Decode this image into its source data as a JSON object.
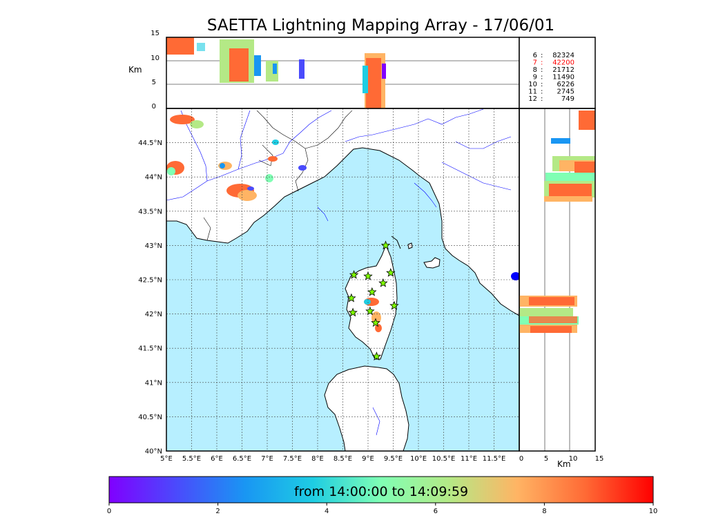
{
  "title": "SAETTA Lightning Mapping Array - 17/06/01",
  "altitude_axis": {
    "unit_label": "Km",
    "ticks": [
      "0",
      "5",
      "10",
      "15"
    ]
  },
  "lon_ticks": [
    "5°E",
    "5.5°E",
    "6°E",
    "6.5°E",
    "7°E",
    "7.5°E",
    "8°E",
    "8.5°E",
    "9°E",
    "9.5°E",
    "10°E",
    "10.5°E",
    "11°E",
    "11.5°E"
  ],
  "lat_ticks": [
    "40°N",
    "40.5°N",
    "41°N",
    "41.5°N",
    "42°N",
    "42.5°N",
    "43°N",
    "43.5°N",
    "44°N",
    "44.5°N"
  ],
  "station_counts": [
    {
      "station": "6",
      "count": "82324",
      "color": "#000000"
    },
    {
      "station": "7",
      "count": "42200",
      "color": "#ff0000"
    },
    {
      "station": "8",
      "count": "21712",
      "color": "#000000"
    },
    {
      "station": "9",
      "count": "11490",
      "color": "#000000"
    },
    {
      "station": "10",
      "count": "6226",
      "color": "#000000"
    },
    {
      "station": "11",
      "count": "2745",
      "color": "#000000"
    },
    {
      "station": "12",
      "count": "749",
      "color": "#000000"
    }
  ],
  "colorbar": {
    "caption": "from 14:00:00 to 14:09:59",
    "ticks": [
      "0",
      "2",
      "4",
      "6",
      "8",
      "10"
    ],
    "colormap": "rainbow",
    "vmin": 0,
    "vmax": 10
  },
  "map": {
    "sea_color": "#b7efff",
    "land_color": "#ffffff",
    "river_color": "#0000ff"
  },
  "sensor_stations": [
    {
      "lon": 9.35,
      "lat": 43.0
    },
    {
      "lon": 8.72,
      "lat": 42.57
    },
    {
      "lon": 9.0,
      "lat": 42.55
    },
    {
      "lon": 9.45,
      "lat": 42.6
    },
    {
      "lon": 9.3,
      "lat": 42.45
    },
    {
      "lon": 9.08,
      "lat": 42.32
    },
    {
      "lon": 8.67,
      "lat": 42.23
    },
    {
      "lon": 9.52,
      "lat": 42.12
    },
    {
      "lon": 8.7,
      "lat": 42.02
    },
    {
      "lon": 9.04,
      "lat": 42.04
    },
    {
      "lon": 9.15,
      "lat": 41.87
    },
    {
      "lon": 9.17,
      "lat": 41.38
    }
  ]
}
